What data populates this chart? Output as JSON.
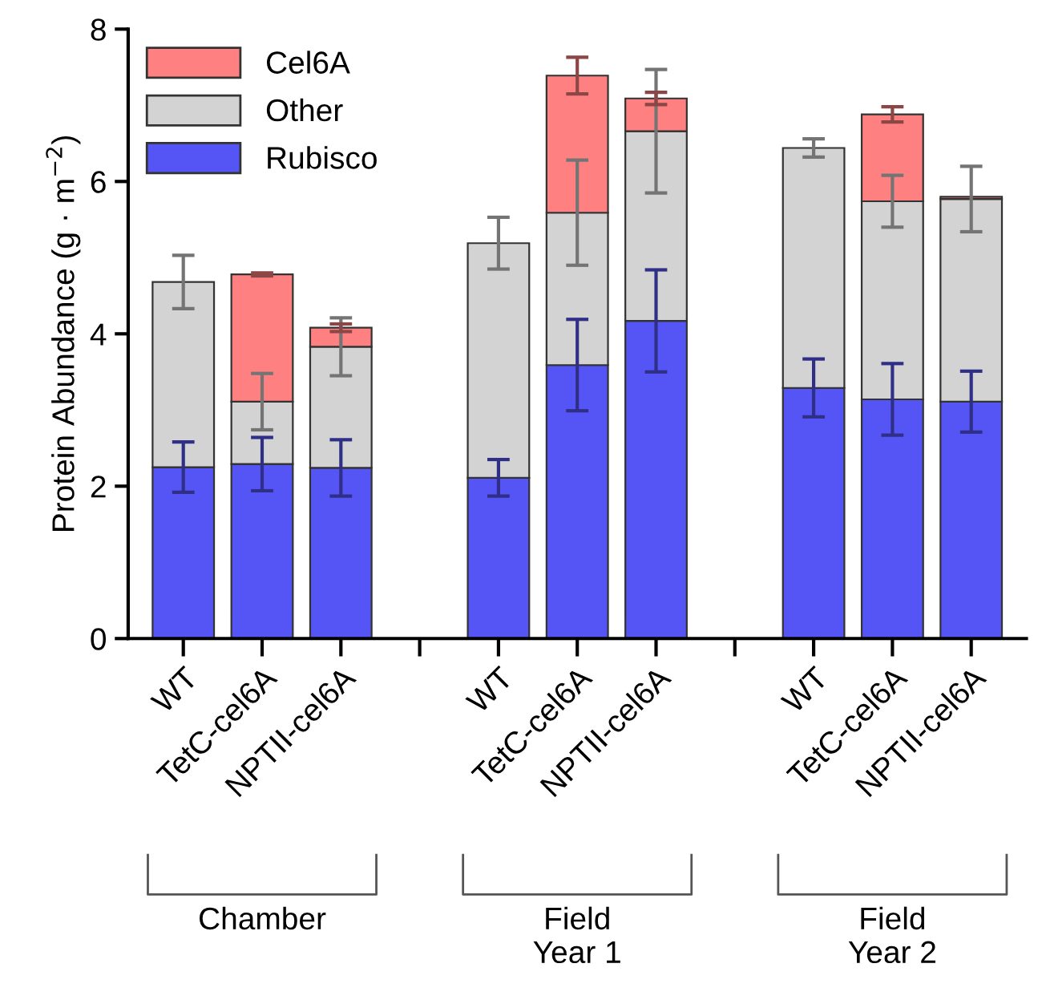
{
  "chart_data": {
    "type": "bar",
    "stacked": true,
    "ylabel": "Protein Abundance (g · m$^{−2}$)",
    "categories": [
      "WT",
      "TetC-cel6A",
      "NPTII-cel6A",
      null,
      "WT",
      "TetC-cel6A",
      "NPTII-cel6A",
      null,
      "WT",
      "TetC-cel6A",
      "NPTII-cel6A"
    ],
    "series": [
      {
        "name": "Rubisco",
        "color": "#5555f5",
        "values": [
          2.25,
          2.29,
          2.24,
          null,
          2.11,
          3.59,
          4.17,
          null,
          3.29,
          3.14,
          3.11
        ],
        "errors": [
          0.33,
          0.35,
          0.37,
          null,
          0.24,
          0.6,
          0.67,
          null,
          0.38,
          0.47,
          0.4
        ]
      },
      {
        "name": "Other",
        "color": "#d3d3d3",
        "values": [
          2.43,
          0.82,
          1.59,
          null,
          3.08,
          2.0,
          2.49,
          null,
          3.15,
          2.6,
          2.66
        ],
        "errors": [
          0.35,
          0.37,
          0.38,
          null,
          0.34,
          0.69,
          0.81,
          null,
          0.12,
          0.34,
          0.43
        ]
      },
      {
        "name": "Cel6A",
        "color": "#ff8080",
        "values": [
          0,
          1.67,
          0.25,
          null,
          0,
          1.8,
          0.43,
          null,
          0,
          1.14,
          0.03
        ],
        "errors": [
          null,
          0.02,
          0.05,
          null,
          null,
          0.24,
          0.08,
          null,
          null,
          0.1,
          null
        ]
      }
    ],
    "ylim": [
      0,
      8
    ],
    "yticks": [
      0,
      2,
      4,
      6,
      8
    ],
    "legend": "top left",
    "annotations": [
      "Chamber",
      "Field\nYear 1",
      "Field\nYear 2"
    ]
  }
}
